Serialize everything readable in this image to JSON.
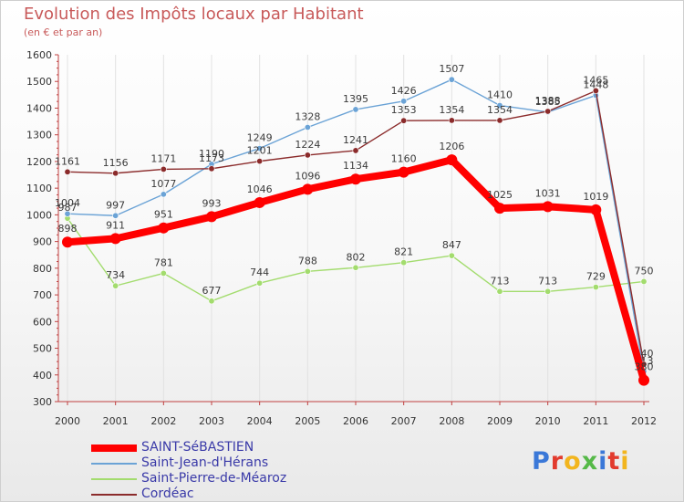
{
  "header": {
    "title": "Evolution des Impôts locaux par Habitant",
    "subtitle": "(en € et par an)"
  },
  "logo": {
    "text": "Proxiti",
    "colors": [
      "#3a78d8",
      "#e23b2e",
      "#f2b51e",
      "#56b948"
    ]
  },
  "chart_data": {
    "type": "line",
    "categories": [
      "2000",
      "2001",
      "2002",
      "2003",
      "2004",
      "2005",
      "2006",
      "2007",
      "2008",
      "2009",
      "2010",
      "2011",
      "2012"
    ],
    "yticks": [
      300,
      400,
      500,
      600,
      700,
      800,
      900,
      1000,
      1100,
      1200,
      1300,
      1400,
      1500,
      1600
    ],
    "ylim": [
      300,
      1600
    ],
    "grid": "vertical",
    "legend_position": "bottom-left",
    "series": [
      {
        "name": "SAINT-SéBASTIEN",
        "color": "#ff0000",
        "values": [
          898,
          911,
          951,
          993,
          1046,
          1096,
          1134,
          1160,
          1206,
          1025,
          1031,
          1019,
          380
        ],
        "labels": [
          "898",
          "911",
          "951",
          "993",
          "1046",
          "1096",
          "1134",
          "1160",
          "1206",
          "1025",
          "1031",
          "1019",
          "380"
        ]
      },
      {
        "name": "Saint-Jean-d'Hérans",
        "color": "#6ba3d6",
        "values": [
          1004,
          997,
          1077,
          1190,
          1249,
          1328,
          1395,
          1426,
          1507,
          1410,
          1385,
          1448,
          413
        ],
        "labels": [
          "1004",
          "997",
          "1077",
          "1190",
          "1249",
          "1328",
          "1395",
          "1426",
          "1507",
          "1410",
          "1385",
          "1448",
          "413"
        ]
      },
      {
        "name": "Saint-Pierre-de-Méaroz",
        "color": "#a3dc6e",
        "values": [
          987,
          734,
          781,
          677,
          744,
          788,
          802,
          821,
          847,
          713,
          713,
          729,
          750
        ],
        "labels": [
          "987",
          "734",
          "781",
          "677",
          "744",
          "788",
          "802",
          "821",
          "847",
          "713",
          "713",
          "729",
          "750"
        ]
      },
      {
        "name": "Cordéac",
        "color": "#8b2b2b",
        "values": [
          1161,
          1156,
          1171,
          1173,
          1201,
          1224,
          1241,
          1353,
          1354,
          1354,
          1388,
          1465,
          440
        ],
        "labels": [
          "1161",
          "1156",
          "1171",
          "1173",
          "1201",
          "1224",
          "1241",
          "1353",
          "1354",
          "1354",
          "1388",
          "1465",
          "440"
        ]
      }
    ]
  }
}
